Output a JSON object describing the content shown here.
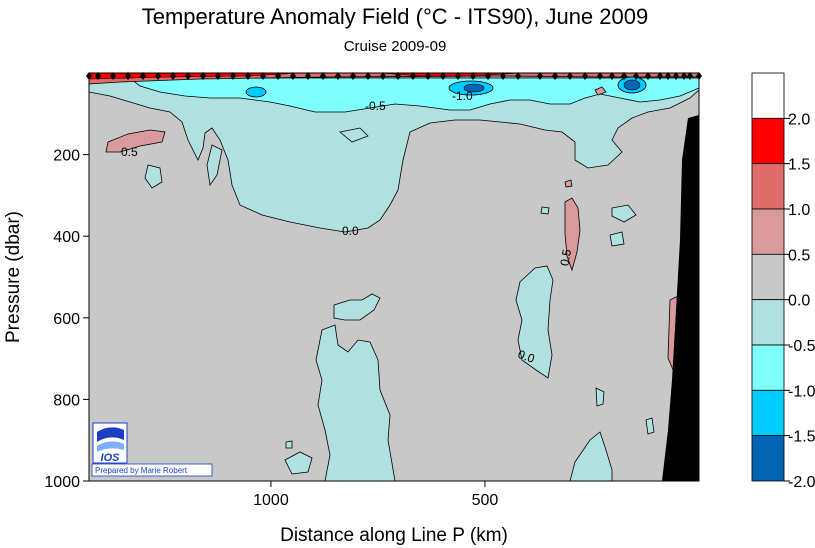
{
  "chart_data": {
    "type": "heatmap",
    "title": "Temperature Anomaly Field  (°C - ITS90),  June 2009",
    "subtitle": "Cruise 2009-09",
    "xlabel": "Distance along Line P  (km)",
    "ylabel": "Pressure  (dbar)",
    "x_ticks": [
      {
        "value": 1000,
        "label": "1000"
      },
      {
        "value": 500,
        "label": "500"
      }
    ],
    "xlim": [
      1425,
      0
    ],
    "y_ticks": [
      {
        "value": 200,
        "label": "200"
      },
      {
        "value": 400,
        "label": "400"
      },
      {
        "value": 600,
        "label": "600"
      },
      {
        "value": 800,
        "label": "800"
      },
      {
        "value": 1000,
        "label": "1000"
      }
    ],
    "ylim": [
      0,
      1000
    ],
    "contour_labels": [
      "0.5",
      "-0.5",
      "-1.0",
      "0.0",
      "0.5",
      "0.0"
    ],
    "colorbar": {
      "levels": [
        "2.0",
        "1.5",
        "1.0",
        "0.5",
        "0.0",
        "-0.5",
        "-1.0",
        "-1.5",
        "-2.0"
      ],
      "bins": [
        {
          "range": [
            2.0,
            2.5
          ],
          "color": "#ffffff"
        },
        {
          "range": [
            1.5,
            2.0
          ],
          "color": "#ff0000"
        },
        {
          "range": [
            1.0,
            1.5
          ],
          "color": "#e06b6b"
        },
        {
          "range": [
            0.5,
            1.0
          ],
          "color": "#d89a9a"
        },
        {
          "range": [
            0.0,
            0.5
          ],
          "color": "#c8c8c8"
        },
        {
          "range": [
            -0.5,
            0.0
          ],
          "color": "#b0e0e0"
        },
        {
          "range": [
            -1.0,
            -0.5
          ],
          "color": "#80ffff"
        },
        {
          "range": [
            -1.5,
            -1.0
          ],
          "color": "#00ccff"
        },
        {
          "range": [
            -2.0,
            -1.5
          ],
          "color": "#0066b3"
        }
      ]
    },
    "colors": {
      "background_anomaly": "#c8c8c8",
      "negative_weak": "#b0e0e0",
      "negative_mid": "#80ffff",
      "negative_strong": "#00ccff",
      "negative_max": "#0066b3",
      "positive_weak": "#d89a9a",
      "positive_mid": "#e06b6b",
      "positive_max": "#ff0000",
      "bathymetry": "#000000"
    },
    "station_markers": "diamonds along the top at 0 dbar"
  },
  "logo": {
    "text": "IOS",
    "credit": "Prepared by Marie Robert"
  }
}
